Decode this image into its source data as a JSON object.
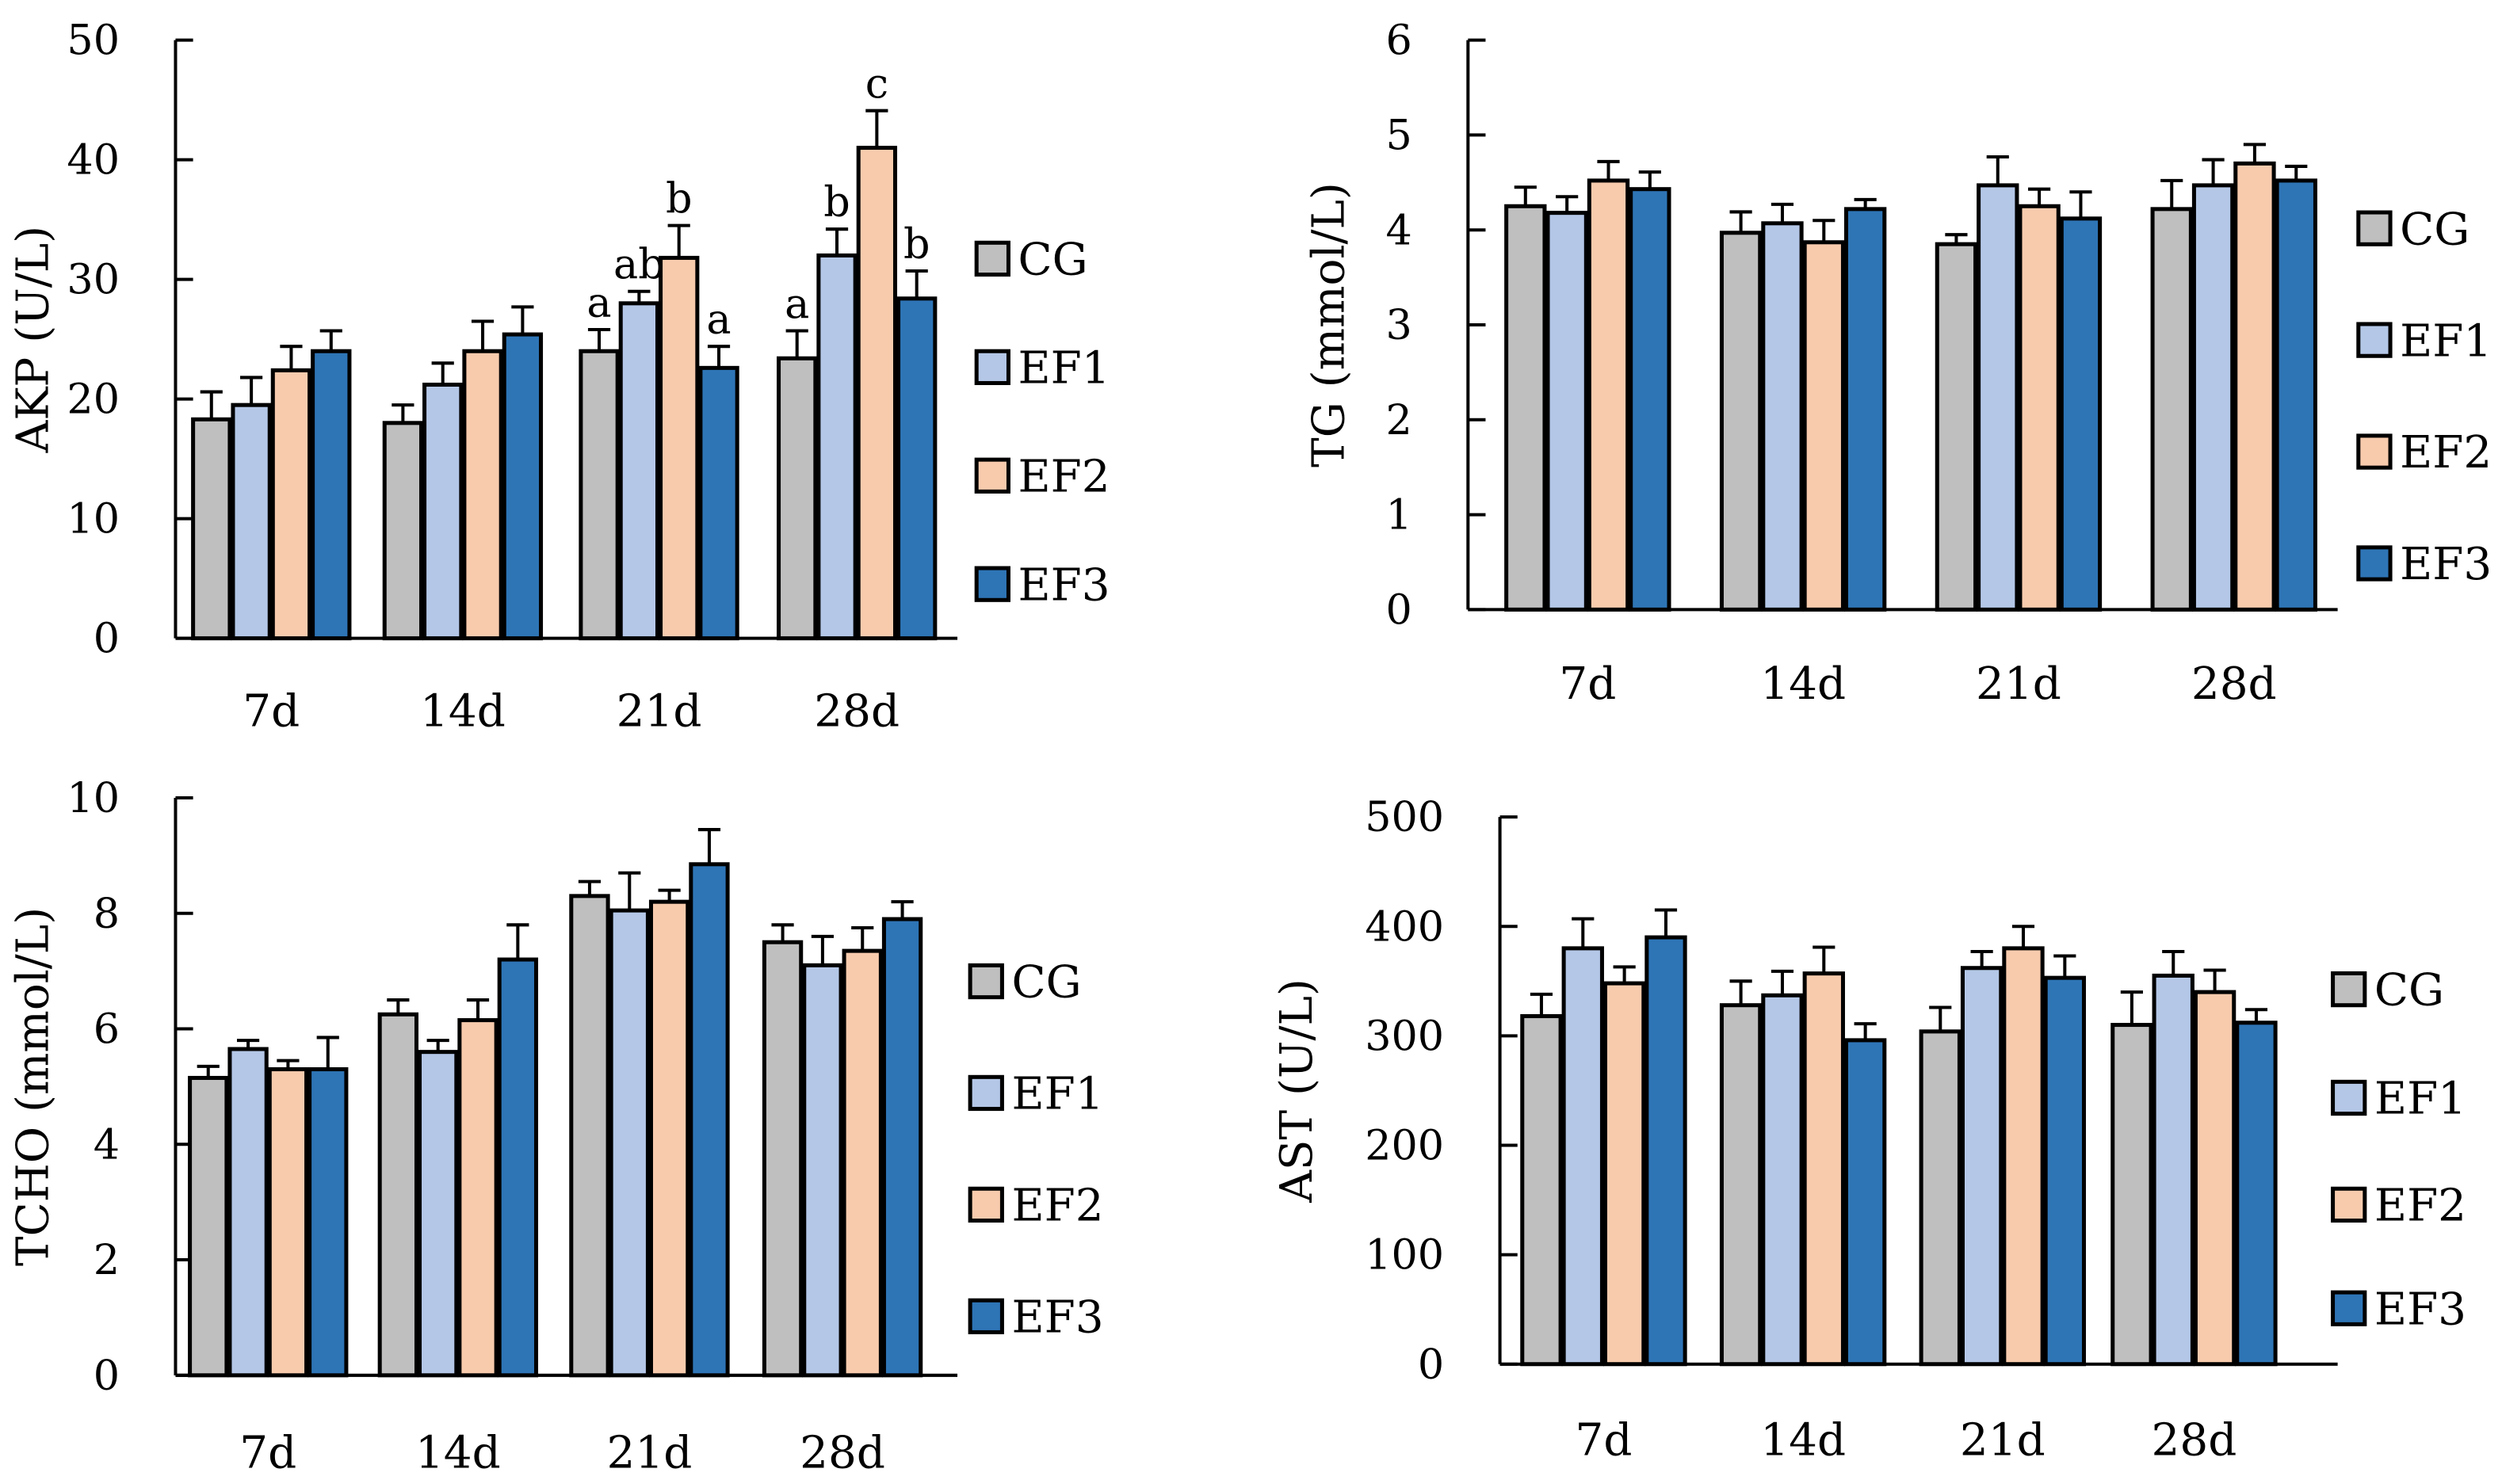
{
  "chart_data": [
    {
      "type": "bar",
      "ylabel": "AKP (U/L)",
      "categories": [
        "7d",
        "14d",
        "21d",
        "28d"
      ],
      "ylim": [
        0,
        50
      ],
      "yticks": [
        0,
        10,
        20,
        30,
        40,
        50
      ],
      "series": [
        {
          "name": "CG",
          "color": "#bfbfbf",
          "values": [
            18.3,
            18.0,
            24.0,
            23.4
          ],
          "errors": [
            2.3,
            1.5,
            1.8,
            2.3
          ],
          "letters": [
            "",
            "",
            "a",
            "a"
          ]
        },
        {
          "name": "EF1",
          "color": "#b4c7e7",
          "values": [
            19.5,
            21.2,
            28.0,
            32.0
          ],
          "errors": [
            2.3,
            1.8,
            1.0,
            2.2
          ],
          "letters": [
            "",
            "",
            "ab",
            "b"
          ]
        },
        {
          "name": "EF2",
          "color": "#f8cbad",
          "values": [
            22.4,
            24.0,
            31.8,
            41.0
          ],
          "errors": [
            2.0,
            2.5,
            2.7,
            3.1
          ],
          "letters": [
            "",
            "",
            "b",
            "c"
          ]
        },
        {
          "name": "EF3",
          "color": "#2e75b6",
          "values": [
            24.0,
            25.4,
            22.6,
            28.4
          ],
          "errors": [
            1.7,
            2.3,
            1.8,
            2.3
          ],
          "letters": [
            "",
            "",
            "a",
            "b"
          ]
        }
      ]
    },
    {
      "type": "bar",
      "ylabel": "TG (mmol/L)",
      "categories": [
        "7d",
        "14d",
        "21d",
        "28d"
      ],
      "ylim": [
        0,
        6
      ],
      "yticks": [
        0,
        1,
        2,
        3,
        4,
        5,
        6
      ],
      "series": [
        {
          "name": "CG",
          "color": "#bfbfbf",
          "values": [
            4.25,
            3.97,
            3.85,
            4.22
          ],
          "errors": [
            0.2,
            0.22,
            0.1,
            0.3
          ]
        },
        {
          "name": "EF1",
          "color": "#b4c7e7",
          "values": [
            4.18,
            4.07,
            4.47,
            4.47
          ],
          "errors": [
            0.17,
            0.2,
            0.3,
            0.27
          ]
        },
        {
          "name": "EF2",
          "color": "#f8cbad",
          "values": [
            4.52,
            3.87,
            4.25,
            4.7
          ],
          "errors": [
            0.2,
            0.23,
            0.18,
            0.2
          ]
        },
        {
          "name": "EF3",
          "color": "#2e75b6",
          "values": [
            4.43,
            4.22,
            4.12,
            4.52
          ],
          "errors": [
            0.18,
            0.1,
            0.28,
            0.15
          ]
        }
      ]
    },
    {
      "type": "bar",
      "ylabel": "TCHO (mmol/L)",
      "categories": [
        "7d",
        "14d",
        "21d",
        "28d"
      ],
      "ylim": [
        0,
        10
      ],
      "yticks": [
        0,
        2,
        4,
        6,
        8,
        10
      ],
      "series": [
        {
          "name": "CG",
          "color": "#bfbfbf",
          "values": [
            5.15,
            6.25,
            8.3,
            7.5
          ],
          "errors": [
            0.2,
            0.25,
            0.25,
            0.3
          ]
        },
        {
          "name": "EF1",
          "color": "#b4c7e7",
          "values": [
            5.65,
            5.6,
            8.05,
            7.1
          ],
          "errors": [
            0.15,
            0.2,
            0.65,
            0.5
          ]
        },
        {
          "name": "EF2",
          "color": "#f8cbad",
          "values": [
            5.3,
            6.15,
            8.2,
            7.35
          ],
          "errors": [
            0.15,
            0.35,
            0.2,
            0.4
          ]
        },
        {
          "name": "EF3",
          "color": "#2e75b6",
          "values": [
            5.3,
            7.2,
            8.85,
            7.9
          ],
          "errors": [
            0.55,
            0.6,
            0.6,
            0.3
          ]
        }
      ]
    },
    {
      "type": "bar",
      "ylabel": "AST (U/L)",
      "categories": [
        "7d",
        "14d",
        "21d",
        "28d"
      ],
      "ylim": [
        0,
        500
      ],
      "yticks": [
        0,
        100,
        200,
        300,
        400,
        500
      ],
      "series": [
        {
          "name": "CG",
          "color": "#bfbfbf",
          "values": [
            318,
            328,
            304,
            310
          ],
          "errors": [
            20,
            22,
            22,
            30
          ]
        },
        {
          "name": "EF1",
          "color": "#b4c7e7",
          "values": [
            380,
            337,
            362,
            355
          ],
          "errors": [
            27,
            22,
            15,
            22
          ]
        },
        {
          "name": "EF2",
          "color": "#f8cbad",
          "values": [
            348,
            357,
            380,
            340
          ],
          "errors": [
            15,
            24,
            20,
            20
          ]
        },
        {
          "name": "EF3",
          "color": "#2e75b6",
          "values": [
            390,
            296,
            353,
            312
          ],
          "errors": [
            25,
            15,
            20,
            12
          ]
        }
      ]
    }
  ]
}
